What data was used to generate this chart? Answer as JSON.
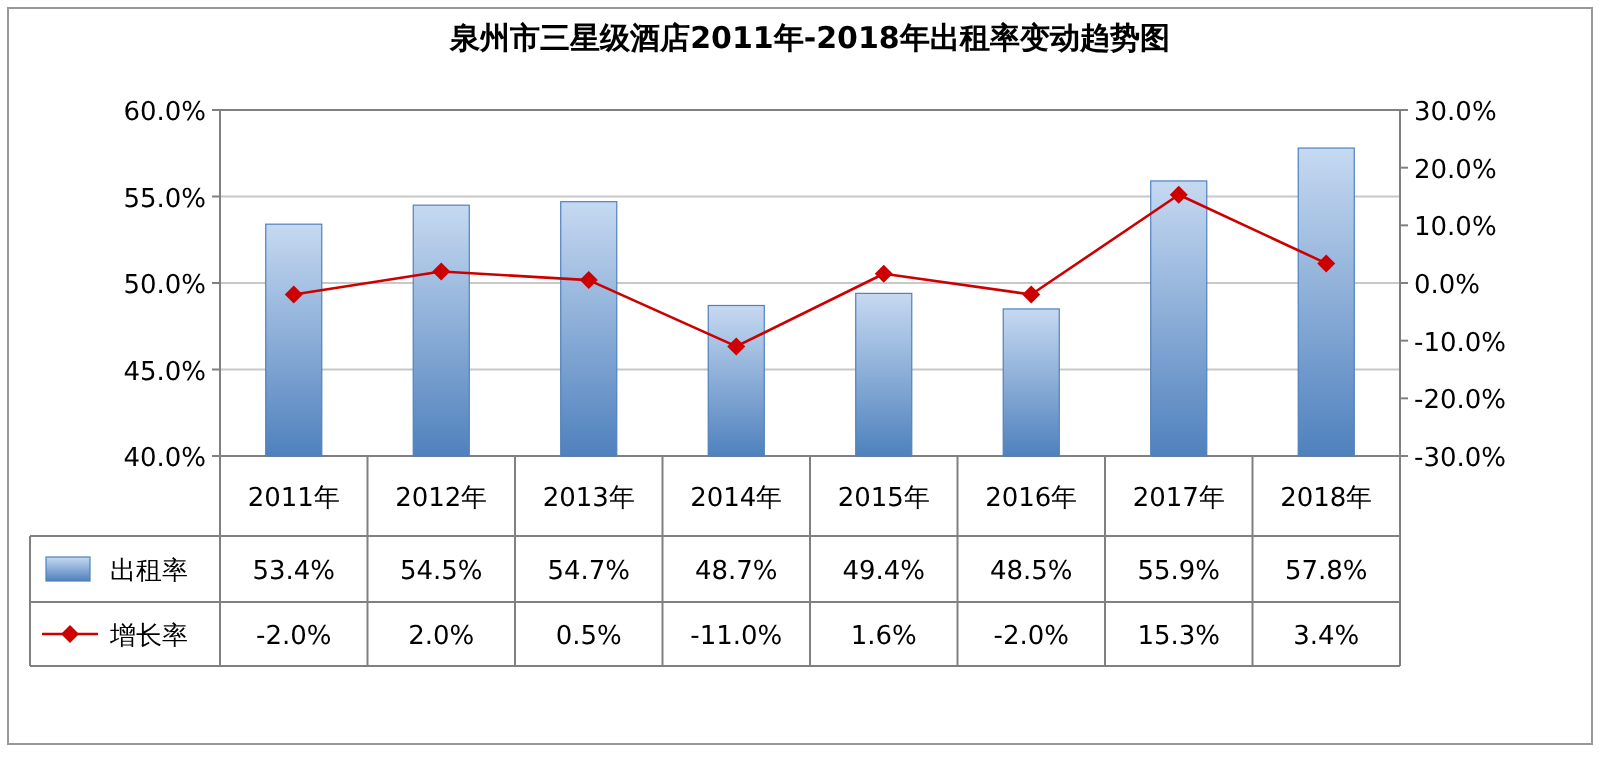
{
  "chart_data": {
    "type": "bar",
    "title": "泉州市三星级酒店2011年-2018年出租率变动趋势图",
    "categories": [
      "2011年",
      "2012年",
      "2013年",
      "2014年",
      "2015年",
      "2016年",
      "2017年",
      "2018年"
    ],
    "series": [
      {
        "name": "出租率",
        "color": "#4f81bd",
        "values": [
          53.4,
          54.5,
          54.7,
          48.7,
          49.4,
          48.5,
          55.9,
          57.8
        ],
        "value_labels": [
          "53.4%",
          "54.5%",
          "54.7%",
          "48.7%",
          "49.4%",
          "48.5%",
          "55.9%",
          "57.8%"
        ]
      },
      {
        "name": "增长率",
        "type": "line",
        "axis": "y2",
        "color": "#cc0000",
        "marker": "diamond",
        "values": [
          -2.0,
          2.0,
          0.5,
          -11.0,
          1.6,
          -2.0,
          15.3,
          3.4
        ],
        "value_labels": [
          "-2.0%",
          "2.0%",
          "0.5%",
          "-11.0%",
          "1.6%",
          "-2.0%",
          "15.3%",
          "3.4%"
        ]
      }
    ],
    "ylim": [
      40,
      60
    ],
    "yticks": [
      {
        "value": 40,
        "label": "40.0%"
      },
      {
        "value": 45,
        "label": "45.0%"
      },
      {
        "value": 50,
        "label": "50.0%"
      },
      {
        "value": 55,
        "label": "55.0%"
      },
      {
        "value": 60,
        "label": "60.0%"
      }
    ],
    "y2lim": [
      -30,
      30
    ],
    "y2ticks": [
      {
        "value": -30,
        "label": "-30.0%"
      },
      {
        "value": -20,
        "label": "-20.0%"
      },
      {
        "value": -10,
        "label": "-10.0%"
      },
      {
        "value": 0,
        "label": "0.0%"
      },
      {
        "value": 10,
        "label": "10.0%"
      },
      {
        "value": 20,
        "label": "20.0%"
      },
      {
        "value": 30,
        "label": "30.0%"
      }
    ],
    "grid": "y",
    "legend": "bottom left"
  }
}
